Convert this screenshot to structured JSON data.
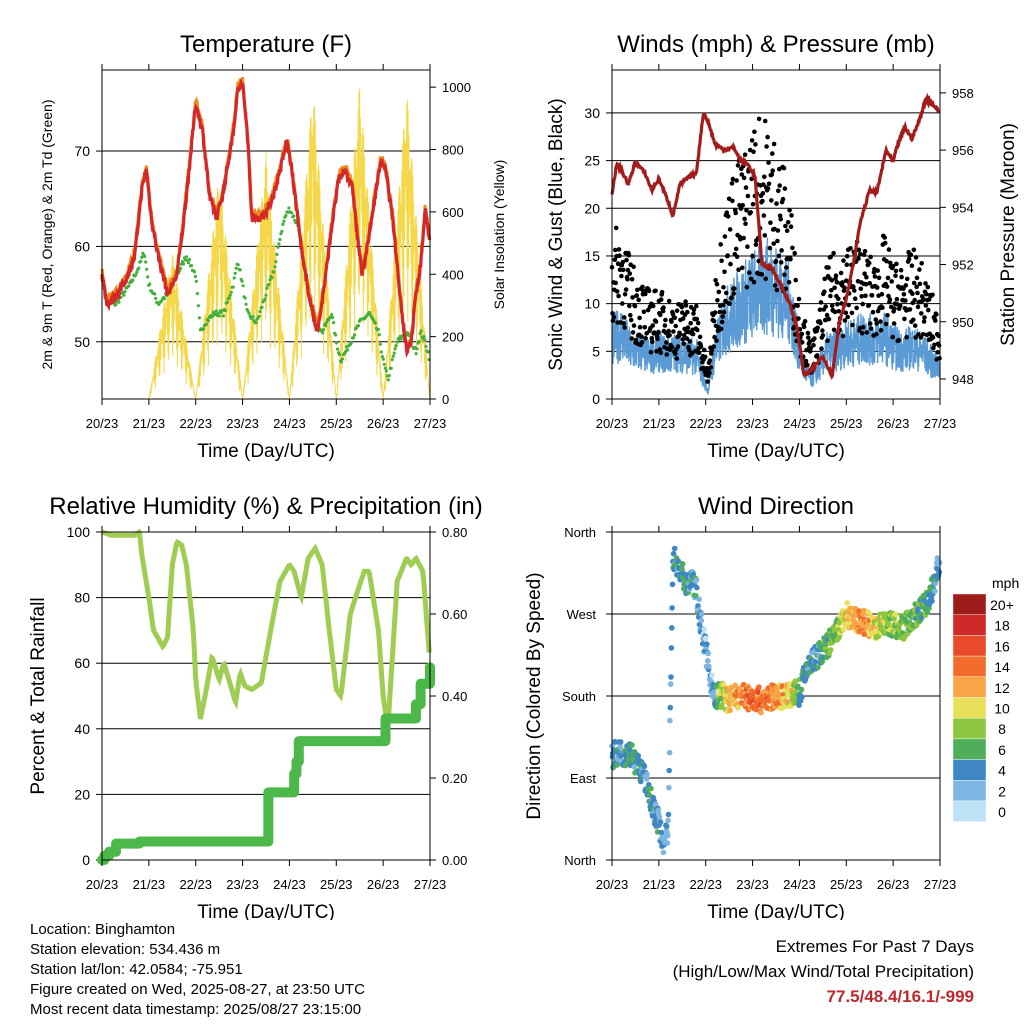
{
  "x_axis_ticks": [
    "20/23",
    "21/23",
    "22/23",
    "23/23",
    "24/23",
    "25/23",
    "26/23",
    "27/23"
  ],
  "chart_data": [
    {
      "id": "temperature",
      "type": "line",
      "title": "Temperature (F)",
      "xlabel": "Time (Day/UTC)",
      "ylabel": "2m & 9m T (Red, Orange) & 2m Td (Green)",
      "y2label": "Solar Insolation (Yellow)",
      "ylim": [
        44,
        78.5
      ],
      "yticks": [
        50,
        60,
        70
      ],
      "y2lim": [
        0,
        1055
      ],
      "y2ticks": [
        0,
        200,
        400,
        600,
        800,
        1000
      ],
      "grid": true,
      "colors": {
        "t2m": "#d62728",
        "t9m": "#f08a1a",
        "td": "#44b03c",
        "solar": "#f5d84a"
      },
      "series": [
        {
          "key": "t2m",
          "x": [
            0,
            0.1,
            0.25,
            0.4,
            0.55,
            0.7,
            0.85,
            0.95,
            1.05,
            1.2,
            1.4,
            1.6,
            1.75,
            1.9,
            2.0,
            2.15,
            2.3,
            2.45,
            2.6,
            2.8,
            2.9,
            3.0,
            3.1,
            3.2,
            3.4,
            3.55,
            3.7,
            3.85,
            3.95,
            4.05,
            4.15,
            4.3,
            4.5,
            4.6,
            4.75,
            4.9,
            5.05,
            5.2,
            5.35,
            5.45,
            5.55,
            5.7,
            5.85,
            5.95,
            6.05,
            6.2,
            6.3,
            6.4,
            6.5,
            6.6,
            6.7,
            6.8,
            6.9,
            7.0
          ],
          "y": [
            57,
            54,
            54.5,
            55.5,
            57,
            59,
            66,
            68,
            63,
            59,
            55,
            57,
            63,
            70,
            75,
            72,
            65,
            63,
            66,
            72,
            76.5,
            77,
            72,
            63,
            63,
            64,
            66,
            69,
            71,
            68,
            64,
            58,
            53,
            51,
            56,
            62,
            67,
            68,
            66,
            61,
            57,
            61,
            66,
            69,
            68,
            63,
            58,
            53,
            49,
            50,
            55,
            58,
            64,
            60
          ]
        },
        {
          "key": "td",
          "x": [
            0,
            0.1,
            0.3,
            0.6,
            0.8,
            0.9,
            1.0,
            1.2,
            1.4,
            1.6,
            1.8,
            2.0,
            2.1,
            2.2,
            2.4,
            2.6,
            2.8,
            2.9,
            3.0,
            3.1,
            3.3,
            3.5,
            3.7,
            3.8,
            3.9,
            4.0,
            4.1,
            4.2,
            4.3,
            4.5,
            4.7,
            4.9,
            5.0,
            5.1,
            5.3,
            5.5,
            5.7,
            5.9,
            6.0,
            6.1,
            6.3,
            6.5,
            6.7,
            6.8,
            6.9,
            7.0
          ],
          "y": [
            57,
            54,
            54,
            56,
            58,
            59.5,
            56,
            54,
            55,
            57,
            59,
            57,
            51,
            52,
            53,
            53,
            56,
            58.5,
            56,
            53,
            52,
            55,
            58,
            61,
            63,
            64,
            63,
            62,
            58,
            53,
            51,
            53,
            50,
            48,
            50,
            52,
            53,
            51,
            48,
            46,
            50,
            51,
            49,
            51,
            50,
            48
          ]
        },
        {
          "key": "solar",
          "x": [
            1.0,
            1.5,
            2.0,
            2.5,
            3.0,
            3.5,
            4.0,
            4.5,
            5.0,
            5.5,
            6.0,
            6.5,
            7.0
          ],
          "y": [
            0,
            470,
            0,
            730,
            0,
            790,
            0,
            1010,
            0,
            1020,
            0,
            1000,
            0
          ]
        }
      ]
    },
    {
      "id": "winds",
      "type": "scatter",
      "title": "Winds (mph) & Pressure (mb)",
      "xlabel": "Time (Day/UTC)",
      "ylabel": "Sonic Wind & Gust (Blue, Black)",
      "y2label": "Station Pressure (Maroon)",
      "ylim": [
        0,
        34.5
      ],
      "yticks": [
        0,
        5,
        10,
        15,
        20,
        25,
        30
      ],
      "y2lim": [
        947.3,
        958.8
      ],
      "y2ticks": [
        948,
        950,
        952,
        954,
        956,
        958
      ],
      "grid": true,
      "colors": {
        "wind": "#5b9bd5",
        "gust": "#000000",
        "pressure": "#a31c1c"
      },
      "series": [
        {
          "key": "wind",
          "x": [
            0,
            0.2,
            0.4,
            0.6,
            0.8,
            1.0,
            1.2,
            1.4,
            1.6,
            1.8,
            1.95,
            2.05,
            2.2,
            2.4,
            2.6,
            2.8,
            3.0,
            3.2,
            3.4,
            3.6,
            3.8,
            3.95,
            4.1,
            4.25,
            4.4,
            4.6,
            4.8,
            5.0,
            5.2,
            5.4,
            5.6,
            5.8,
            6.0,
            6.2,
            6.4,
            6.6,
            6.8,
            7.0
          ],
          "y": [
            6,
            7,
            5,
            5,
            4.5,
            5,
            4.5,
            5,
            4.5,
            4.5,
            2,
            0.8,
            5,
            8,
            9,
            10,
            11,
            11.5,
            12,
            11,
            10,
            6,
            3,
            2,
            3,
            5,
            5,
            6,
            6,
            6.5,
            6,
            6.5,
            5.5,
            5,
            5.5,
            5,
            4,
            3
          ]
        },
        {
          "key": "gust",
          "x": [
            0,
            0.2,
            0.4,
            0.6,
            0.8,
            1.0,
            1.2,
            1.4,
            1.6,
            1.8,
            1.95,
            2.05,
            2.2,
            2.4,
            2.6,
            2.8,
            3.0,
            3.2,
            3.4,
            3.6,
            3.8,
            3.95,
            4.1,
            4.25,
            4.4,
            4.6,
            4.8,
            5.0,
            5.2,
            5.4,
            5.6,
            5.8,
            6.0,
            6.2,
            6.4,
            6.6,
            6.8,
            7.0
          ],
          "y": [
            12,
            13,
            10,
            9,
            8,
            8,
            7.5,
            7,
            7.5,
            7,
            4,
            2,
            9,
            14,
            17,
            18,
            20,
            21,
            20,
            18,
            15,
            9,
            6,
            4,
            6,
            10,
            11,
            11,
            12,
            11,
            10,
            12,
            10,
            10,
            11,
            10,
            8,
            6
          ]
        },
        {
          "key": "pressure",
          "x": [
            0,
            0.1,
            0.2,
            0.35,
            0.5,
            0.7,
            0.85,
            1.0,
            1.2,
            1.3,
            1.45,
            1.6,
            1.8,
            1.95,
            2.05,
            2.2,
            2.4,
            2.6,
            2.75,
            2.9,
            3.05,
            3.2,
            3.4,
            3.6,
            3.8,
            3.95,
            4.1,
            4.3,
            4.5,
            4.7,
            4.85,
            5.0,
            5.15,
            5.3,
            5.5,
            5.65,
            5.85,
            6.0,
            6.1,
            6.25,
            6.4,
            6.55,
            6.7,
            6.85,
            7.0
          ],
          "y": [
            954.5,
            955.5,
            955.3,
            954.8,
            955.6,
            955.2,
            954.6,
            955.0,
            954.2,
            953.7,
            954.8,
            955.0,
            955.2,
            957.3,
            957.0,
            956.2,
            956.0,
            956.1,
            955.6,
            955.5,
            955.1,
            952.0,
            951.9,
            951.3,
            950.6,
            949.8,
            948.1,
            948.4,
            948.8,
            948.1,
            950.0,
            950.8,
            952.0,
            953.5,
            954.6,
            954.5,
            956.0,
            955.6,
            956.2,
            956.8,
            956.4,
            957.0,
            957.8,
            957.6,
            957.3
          ]
        }
      ]
    },
    {
      "id": "humidity",
      "type": "line",
      "title": "Relative Humidity (%) & Precipitation (in)",
      "xlabel": "Time (Day/UTC)",
      "ylabel": "Percent & Total Rainfall",
      "ylim": [
        0,
        100
      ],
      "yticks": [
        0,
        20,
        40,
        60,
        80,
        100
      ],
      "y2lim": [
        0,
        0.8
      ],
      "y2ticks": [
        "0.00",
        "0.20",
        "0.40",
        "0.60",
        "0.80"
      ],
      "grid": true,
      "colors": {
        "rh": "#9fcc52",
        "precip": "#4cb84a"
      },
      "series": [
        {
          "key": "rh",
          "x": [
            0,
            0.2,
            0.4,
            0.7,
            0.8,
            0.85,
            1.0,
            1.1,
            1.3,
            1.4,
            1.5,
            1.6,
            1.7,
            1.8,
            1.95,
            2.0,
            2.1,
            2.2,
            2.35,
            2.5,
            2.6,
            2.75,
            2.85,
            2.95,
            3.05,
            3.2,
            3.4,
            3.6,
            3.8,
            4.0,
            4.1,
            4.25,
            4.4,
            4.55,
            4.7,
            4.85,
            5.0,
            5.1,
            5.3,
            5.5,
            5.6,
            5.7,
            5.9,
            6.0,
            6.1,
            6.3,
            6.5,
            6.6,
            6.7,
            6.85,
            7.0
          ],
          "y": [
            100,
            99,
            99,
            99,
            100,
            93,
            80,
            70,
            65,
            68,
            90,
            97,
            96,
            90,
            70,
            55,
            43,
            50,
            62,
            55,
            60,
            53,
            48,
            57,
            53,
            52,
            54,
            70,
            85,
            90,
            88,
            80,
            92,
            95,
            90,
            70,
            52,
            50,
            75,
            84,
            88,
            88,
            70,
            50,
            40,
            85,
            92,
            90,
            92,
            88,
            60
          ]
        },
        {
          "key": "precip",
          "x": [
            0,
            0.05,
            0.15,
            0.3,
            0.5,
            0.8,
            1.0,
            2.0,
            3.0,
            3.5,
            3.55,
            4.0,
            4.1,
            4.15,
            4.2,
            4.3,
            5.0,
            6.0,
            6.05,
            6.6,
            6.7,
            6.8,
            7.0
          ],
          "y": [
            0,
            0.01,
            0.02,
            0.04,
            0.04,
            0.045,
            0.045,
            0.045,
            0.045,
            0.045,
            0.165,
            0.165,
            0.21,
            0.24,
            0.29,
            0.29,
            0.29,
            0.29,
            0.345,
            0.345,
            0.38,
            0.43,
            0.47
          ]
        }
      ]
    },
    {
      "id": "direction",
      "type": "scatter",
      "title": "Wind Direction",
      "xlabel": "Time (Day/UTC)",
      "ylabel": "Direction (Colored By Speed)",
      "yticks": [
        "North",
        "East",
        "South",
        "West",
        "North"
      ],
      "ylim": [
        0,
        360
      ],
      "grid": true,
      "legend": {
        "title": "mph",
        "placement": "right",
        "labels": [
          "20+",
          "18",
          "16",
          "14",
          "12",
          "10",
          "8",
          "6",
          "4",
          "2",
          "0"
        ],
        "colors": [
          "#9e1b1b",
          "#cf2a2a",
          "#e84a2a",
          "#f26d2c",
          "#f7a546",
          "#e8e05a",
          "#8dc63f",
          "#4fae5a",
          "#3f86c4",
          "#7db6e3",
          "#bde2f6"
        ]
      },
      "series": [
        {
          "name": "",
          "x": [
            0,
            0.2,
            0.4,
            0.6,
            0.7,
            0.8,
            0.9,
            1.0,
            1.1,
            1.2,
            1.3,
            1.4,
            1.5,
            1.6,
            1.7,
            1.8,
            1.9,
            2.0,
            2.1,
            2.2,
            2.3,
            2.4,
            2.5,
            2.6,
            2.8,
            3.0,
            3.2,
            3.4,
            3.6,
            3.8,
            4.0,
            4.2,
            4.4,
            4.6,
            4.8,
            5.0,
            5.2,
            5.4,
            5.6,
            5.8,
            6.0,
            6.2,
            6.4,
            6.6,
            6.8,
            6.95
          ],
          "y": [
            115,
            118,
            117,
            100,
            90,
            70,
            55,
            40,
            20,
            30,
            335,
            320,
            315,
            300,
            310,
            295,
            260,
            230,
            200,
            175,
            182,
            180,
            175,
            180,
            180,
            178,
            175,
            178,
            180,
            182,
            183,
            215,
            225,
            235,
            250,
            270,
            262,
            260,
            255,
            258,
            260,
            255,
            265,
            275,
            290,
            320
          ],
          "speed": [
            4,
            4,
            5,
            4,
            3,
            4,
            4,
            3,
            3,
            3,
            4,
            4,
            5,
            4,
            4,
            4,
            3,
            2,
            2,
            3,
            8,
            10,
            11,
            12,
            13,
            15,
            14,
            13,
            12,
            10,
            6,
            4,
            4,
            6,
            7,
            10,
            12,
            13,
            10,
            9,
            8,
            7,
            7,
            6,
            5,
            4
          ]
        }
      ]
    }
  ],
  "info": {
    "location": "Location: Binghamton",
    "elevation": "Station elevation: 534.436 m",
    "latlon": "Station lat/lon: 42.0584; -75.951",
    "created": "Figure created on Wed, 2025-08-27, at 23:50 UTC",
    "recent": "Most recent data timestamp: 2025/08/27 23:15:00"
  },
  "extremes": {
    "title": "Extremes For Past 7 Days",
    "subtitle": "(High/Low/Max Wind/Total Precipitation)",
    "value": "77.5/48.4/16.1/-999"
  }
}
